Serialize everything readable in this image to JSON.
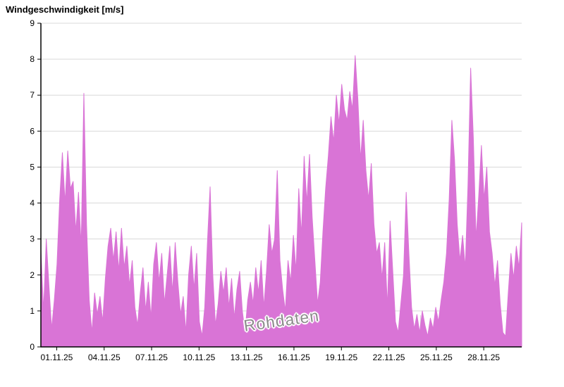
{
  "chart_data": {
    "type": "area",
    "title": "Windgeschwindigkeit [m/s]",
    "watermark": "Rohdaten",
    "ylabel": "Windgeschwindigkeit [m/s]",
    "xlabel": "",
    "ylim": [
      0,
      9
    ],
    "y_ticks": [
      0,
      1,
      2,
      3,
      4,
      5,
      6,
      7,
      8,
      9
    ],
    "x_domain_days": [
      0,
      30.4
    ],
    "x_ticks": [
      {
        "day": 1,
        "label": "01.11.25"
      },
      {
        "day": 4,
        "label": "04.11.25"
      },
      {
        "day": 7,
        "label": "07.11.25"
      },
      {
        "day": 10,
        "label": "10.11.25"
      },
      {
        "day": 13,
        "label": "13.11.25"
      },
      {
        "day": 16,
        "label": "16.11.25"
      },
      {
        "day": 19,
        "label": "19.11.25"
      },
      {
        "day": 22,
        "label": "22.11.25"
      },
      {
        "day": 25,
        "label": "25.11.25"
      },
      {
        "day": 28,
        "label": "28.11.25"
      }
    ],
    "grid": {
      "horizontal": true,
      "vertical_day_ticks": true
    },
    "legend_position": "none",
    "colors": {
      "series": "#d974d6",
      "grid": "#d9d9d9",
      "axis": "#000000",
      "watermark": "#8c8c8c"
    },
    "series": [
      {
        "name": "Rohdaten",
        "color": "#d974d6",
        "values": [
          2.7,
          1.0,
          3.0,
          1.7,
          0.5,
          1.3,
          2.3,
          4.1,
          5.4,
          4.0,
          5.45,
          4.4,
          4.6,
          3.2,
          4.3,
          2.8,
          7.05,
          3.4,
          1.3,
          0.4,
          1.5,
          0.9,
          1.4,
          0.7,
          1.9,
          2.8,
          3.3,
          2.4,
          3.2,
          2.1,
          3.3,
          2.2,
          2.8,
          1.7,
          2.4,
          1.1,
          0.6,
          1.5,
          2.2,
          1.0,
          1.8,
          0.8,
          2.3,
          2.9,
          1.8,
          2.6,
          1.2,
          2.0,
          2.8,
          1.5,
          2.9,
          1.8,
          0.9,
          1.4,
          0.4,
          2.0,
          2.8,
          1.6,
          2.6,
          0.7,
          0.3,
          1.1,
          2.9,
          4.45,
          2.0,
          0.6,
          1.2,
          2.1,
          1.5,
          2.2,
          1.1,
          1.9,
          0.8,
          1.6,
          2.1,
          1.0,
          0.4,
          1.3,
          1.8,
          1.2,
          2.2,
          1.5,
          2.4,
          1.1,
          2.1,
          3.4,
          2.6,
          3.0,
          4.9,
          2.4,
          1.6,
          1.0,
          2.4,
          1.8,
          3.1,
          2.1,
          4.4,
          3.1,
          5.3,
          4.0,
          5.35,
          3.6,
          2.4,
          1.2,
          1.8,
          3.2,
          4.4,
          5.3,
          6.4,
          5.7,
          7.0,
          6.2,
          7.3,
          6.6,
          6.3,
          7.1,
          6.6,
          8.1,
          6.9,
          5.2,
          6.3,
          4.9,
          4.1,
          5.1,
          3.4,
          2.6,
          2.9,
          1.9,
          2.9,
          1.1,
          3.5,
          2.1,
          0.7,
          0.4,
          1.2,
          2.0,
          4.3,
          2.6,
          1.1,
          0.5,
          0.9,
          0.4,
          1.0,
          0.6,
          0.3,
          0.8,
          0.5,
          1.1,
          0.7,
          1.3,
          1.8,
          2.6,
          4.1,
          6.3,
          5.2,
          3.4,
          2.4,
          3.1,
          2.2,
          4.5,
          7.75,
          5.8,
          3.0,
          4.2,
          5.6,
          4.1,
          5.0,
          3.2,
          2.6,
          1.7,
          2.4,
          1.2,
          0.4,
          0.3,
          1.5,
          2.6,
          1.9,
          2.8,
          2.2,
          3.45
        ]
      }
    ]
  }
}
